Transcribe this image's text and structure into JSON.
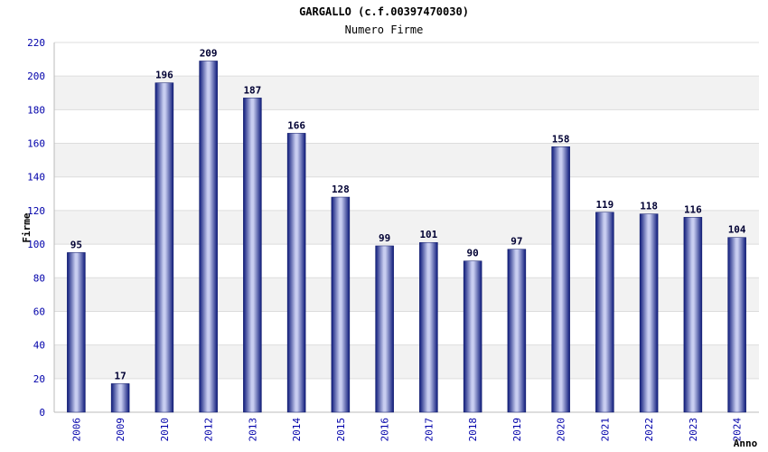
{
  "chart_data": {
    "type": "bar",
    "title": "GARGALLO (c.f.00397470030)",
    "subtitle": "Numero Firme",
    "xlabel": "Anno",
    "ylabel": "Firme",
    "ylim": [
      0,
      220
    ],
    "yticks": [
      0,
      20,
      40,
      60,
      80,
      100,
      120,
      140,
      160,
      180,
      200,
      220
    ],
    "categories": [
      "2006",
      "2009",
      "2010",
      "2012",
      "2013",
      "2014",
      "2015",
      "2016",
      "2017",
      "2018",
      "2019",
      "2020",
      "2021",
      "2022",
      "2023",
      "2024"
    ],
    "values": [
      95,
      17,
      196,
      209,
      187,
      166,
      128,
      99,
      101,
      90,
      97,
      158,
      119,
      118,
      116,
      104
    ],
    "bar_color": "#1a2a8c",
    "band_color": "#f2f2f2",
    "grid": true
  }
}
